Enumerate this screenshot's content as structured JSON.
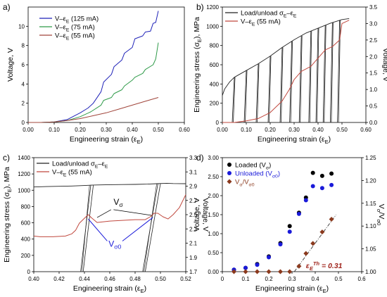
{
  "chart_data": [
    {
      "panel_label": "a)",
      "type": "line",
      "xlabel": "Engineering strain (ε",
      "xlabel_sub": "E",
      "ylabel": "Voltage, V",
      "xlim": [
        0,
        0.6
      ],
      "ylim": [
        0,
        12
      ],
      "xticks": [
        "0.00",
        "0.10",
        "0.20",
        "0.30",
        "0.40",
        "0.50",
        "0.60"
      ],
      "yticks": [
        "0",
        "2",
        "4",
        "6",
        "8",
        "10"
      ],
      "legend_position": "top-left",
      "series": [
        {
          "name": "V–ε",
          "name_sub": "E",
          "name_suffix": " (125 mA)",
          "color": "#1f22b8",
          "x": [
            0.0,
            0.05,
            0.1,
            0.15,
            0.2,
            0.23,
            0.25,
            0.28,
            0.29,
            0.32,
            0.33,
            0.36,
            0.37,
            0.4,
            0.41,
            0.44,
            0.45,
            0.47,
            0.48,
            0.49,
            0.5
          ],
          "y": [
            0.0,
            0.0,
            0.05,
            0.3,
            1.0,
            1.5,
            2.0,
            3.2,
            4.2,
            5.0,
            5.8,
            6.5,
            7.2,
            7.8,
            8.7,
            9.0,
            9.4,
            9.5,
            10.3,
            10.4,
            11.6
          ]
        },
        {
          "name": "V–ε",
          "name_sub": "E",
          "name_suffix": " (75 mA)",
          "color": "#2e9a48",
          "x": [
            0.0,
            0.05,
            0.1,
            0.15,
            0.2,
            0.24,
            0.28,
            0.29,
            0.32,
            0.33,
            0.36,
            0.37,
            0.4,
            0.41,
            0.44,
            0.45,
            0.48,
            0.49,
            0.5
          ],
          "y": [
            0.0,
            0.0,
            0.05,
            0.2,
            0.6,
            1.1,
            1.8,
            2.3,
            2.6,
            3.0,
            3.4,
            3.8,
            4.4,
            4.7,
            5.1,
            5.5,
            6.0,
            6.6,
            8.3
          ]
        },
        {
          "name": "V–ε",
          "name_sub": "E",
          "name_suffix": " (55 mA)",
          "color": "#a0443a",
          "x": [
            0.0,
            0.05,
            0.1,
            0.15,
            0.2,
            0.25,
            0.3,
            0.35,
            0.4,
            0.45,
            0.5
          ],
          "y": [
            0.0,
            0.0,
            0.05,
            0.2,
            0.4,
            0.7,
            1.0,
            1.4,
            1.8,
            2.2,
            2.6
          ]
        }
      ]
    },
    {
      "panel_label": "b)",
      "type": "line",
      "xlabel": "Engineering strain (ε",
      "xlabel_sub": "E",
      "ylabel": "Engineering stress (σ",
      "ylabel_sub": "E",
      "ylabel_suffix": "), MPa",
      "y2label": "Voltage, V",
      "xlim": [
        0,
        0.6
      ],
      "ylim": [
        0,
        1200
      ],
      "y2lim": [
        0,
        3.5
      ],
      "xticks": [
        "0.00",
        "0.10",
        "0.20",
        "0.30",
        "0.40",
        "0.50",
        "0.60"
      ],
      "yticks": [
        "0",
        "200",
        "400",
        "600",
        "800",
        "1000",
        "1200"
      ],
      "y2ticks": [
        "0.0",
        "0.5",
        "1.0",
        "1.5",
        "2.0",
        "2.5",
        "3.0",
        "3.5"
      ],
      "legend_position": "top-left",
      "unload_strains": [
        0.05,
        0.1,
        0.15,
        0.2,
        0.25,
        0.29,
        0.33,
        0.37,
        0.4,
        0.43,
        0.46,
        0.49
      ],
      "series": [
        {
          "name": "Load/unload σ",
          "name_sub": "E",
          "name_mid": "–ε",
          "name_sub2": "E",
          "color": "#222222",
          "x": [
            0.0,
            0.01,
            0.03,
            0.05,
            0.1,
            0.15,
            0.2,
            0.25,
            0.3,
            0.35,
            0.4,
            0.45,
            0.5,
            0.53
          ],
          "y": [
            280,
            350,
            420,
            470,
            540,
            610,
            690,
            780,
            860,
            930,
            980,
            1030,
            1070,
            1080
          ]
        },
        {
          "name": "V–ε",
          "name_sub": "E",
          "name_suffix": " (55 mA)",
          "color": "#c0483e",
          "x": [
            0.0,
            0.05,
            0.1,
            0.15,
            0.2,
            0.25,
            0.28,
            0.3,
            0.33,
            0.37,
            0.4,
            0.43,
            0.46,
            0.49,
            0.5,
            0.53
          ],
          "y": [
            0.0,
            0.0,
            0.05,
            0.12,
            0.3,
            0.65,
            1.0,
            1.3,
            1.55,
            1.7,
            1.95,
            2.2,
            2.3,
            2.5,
            3.0,
            3.1
          ]
        }
      ]
    },
    {
      "panel_label": "c)",
      "type": "line",
      "xlabel": "Engineering strain (ε",
      "xlabel_sub": "E",
      "ylabel": "Engineering stress (σ",
      "ylabel_sub": "E",
      "ylabel_suffix": "), MPa",
      "y2label": "Voltage, V",
      "xlim": [
        0.4,
        0.52
      ],
      "ylim": [
        0,
        1400
      ],
      "y2lim": [
        1.7,
        3.3
      ],
      "xticks": [
        "0.40",
        "0.42",
        "0.44",
        "0.46",
        "0.48",
        "0.50",
        "0.52"
      ],
      "yticks": [
        "0",
        "200",
        "400",
        "600",
        "800",
        "1000",
        "1200",
        "1400"
      ],
      "y2ticks": [
        "1.7",
        "1.9",
        "2.1",
        "2.3",
        "2.5",
        "2.7",
        "2.9",
        "3.1",
        "3.3"
      ],
      "legend_position": "top-left",
      "annotations": [
        {
          "text": "V",
          "sub": "σ"
        },
        {
          "text": "V",
          "sub": "σ0"
        }
      ],
      "series": [
        {
          "name": "Load/unload σ",
          "name_sub": "E",
          "name_mid": "–ε",
          "name_sub2": "E",
          "color": "#222222",
          "x": [
            0.4,
            0.41,
            0.42,
            0.43,
            0.44,
            0.445,
            0.45,
            0.46,
            0.47,
            0.48,
            0.49,
            0.497,
            0.505,
            0.51,
            0.52
          ],
          "y": [
            1040,
            1045,
            1048,
            1052,
            1058,
            1062,
            1065,
            1068,
            1070,
            1072,
            1075,
            1080,
            1085,
            1082,
            1080
          ]
        },
        {
          "name": "V–ε",
          "name_sub": "E",
          "name_suffix": " (55 mA)",
          "color": "#c0483e",
          "x": [
            0.4,
            0.405,
            0.415,
            0.425,
            0.43,
            0.433,
            0.436,
            0.44,
            0.443,
            0.446,
            0.45,
            0.455,
            0.46,
            0.47,
            0.48,
            0.488,
            0.492,
            0.495,
            0.498,
            0.502,
            0.506,
            0.51,
            0.515,
            0.52
          ],
          "y": [
            2.2,
            2.19,
            2.19,
            2.2,
            2.23,
            2.28,
            2.38,
            2.45,
            2.5,
            2.45,
            2.39,
            2.4,
            2.41,
            2.42,
            2.43,
            2.43,
            2.47,
            2.52,
            2.52,
            2.47,
            2.44,
            2.5,
            2.6,
            2.78
          ]
        }
      ]
    },
    {
      "panel_label": "d)",
      "type": "scatter",
      "xlabel": "Engineering strain (ε",
      "xlabel_sub": "E",
      "ylabel": "Voltage, V",
      "y2label": "V",
      "y2label_sub": "σ",
      "y2label_mid": "/V",
      "y2label_sub2": "σ0",
      "xlim": [
        0,
        0.6
      ],
      "ylim": [
        0,
        3.0
      ],
      "y2lim": [
        1.0,
        1.25
      ],
      "xticks": [
        "0",
        "0.1",
        "0.2",
        "0.3",
        "0.4",
        "0.5",
        "0.6"
      ],
      "yticks": [
        "0.00",
        "0.50",
        "1.00",
        "1.50",
        "2.00",
        "2.50",
        "3.00"
      ],
      "y2ticks": [
        "1.00",
        "1.05",
        "1.10",
        "1.15",
        "1.20",
        "1.25"
      ],
      "legend_position": "top-left",
      "annotation": {
        "text": "ε",
        "sub": "E",
        "sup": "Th",
        "suffix": " = 0.31",
        "color": "#a0261e"
      },
      "series": [
        {
          "name": "Loaded (V",
          "name_sub": "σ",
          "name_suffix": ")",
          "color": "#000000",
          "x": [
            0.05,
            0.1,
            0.15,
            0.2,
            0.25,
            0.29,
            0.33,
            0.36,
            0.39,
            0.43,
            0.47
          ],
          "y": [
            0.05,
            0.1,
            0.2,
            0.4,
            0.75,
            1.2,
            1.55,
            1.95,
            2.6,
            2.52,
            2.58
          ]
        },
        {
          "name": "Unloaded (V",
          "name_sub": "σ0",
          "name_suffix": ")",
          "color": "#1a1ad9",
          "x": [
            0.05,
            0.1,
            0.15,
            0.2,
            0.25,
            0.29,
            0.33,
            0.36,
            0.39,
            0.43,
            0.47
          ],
          "y": [
            0.05,
            0.1,
            0.18,
            0.38,
            0.72,
            1.05,
            1.52,
            1.88,
            2.25,
            2.2,
            2.28
          ]
        },
        {
          "name": "V",
          "name_sub": "σ",
          "name_mid": "/V",
          "name_sub2": "σ0",
          "color": "#8b3a1e",
          "axis": "right",
          "x": [
            0.05,
            0.1,
            0.15,
            0.2,
            0.25,
            0.29,
            0.33,
            0.36,
            0.39,
            0.43,
            0.47
          ],
          "y": [
            1.0,
            1.0,
            1.0,
            1.0,
            1.0,
            1.0,
            1.012,
            1.04,
            1.062,
            1.087,
            1.115
          ]
        }
      ]
    }
  ]
}
